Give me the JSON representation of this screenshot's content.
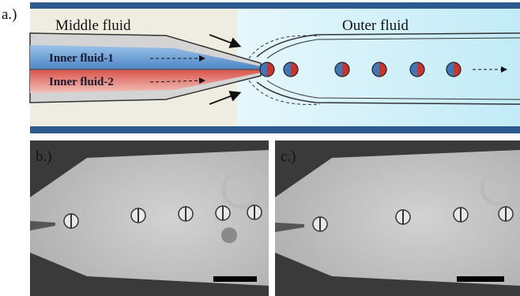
{
  "panels": {
    "a": {
      "label": "a.)",
      "middle_fluid": "Middle fluid",
      "outer_fluid": "Outer fluid",
      "inner_fluid_1": "Inner fluid-1",
      "inner_fluid_2": "Inner fluid-2"
    },
    "b": {
      "label": "b.)"
    },
    "c": {
      "label": "c.)"
    }
  }
}
